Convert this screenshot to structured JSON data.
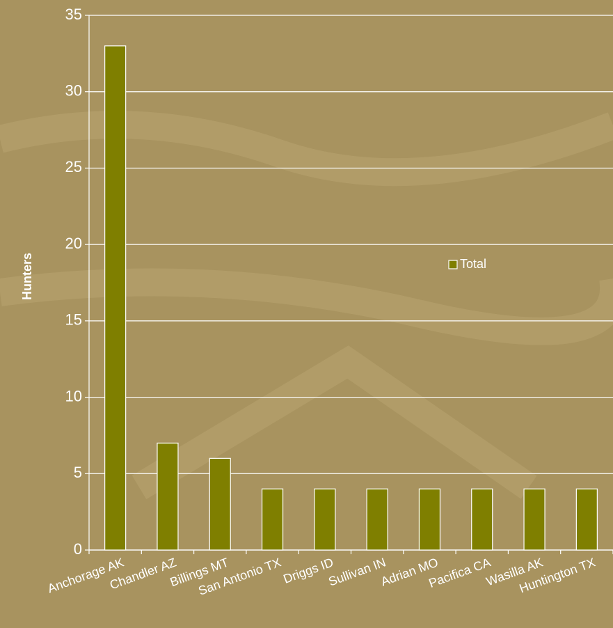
{
  "chart_data": {
    "type": "bar",
    "y_label": "Hunters",
    "categories": [
      "Anchorage AK",
      "Chandler AZ",
      "Billings MT",
      "San Antonio TX",
      "Driggs ID",
      "Sullivan IN",
      "Adrian MO",
      "Pacifica CA",
      "Wasilla AK",
      "Huntington TX"
    ],
    "series": [
      {
        "name": "Total",
        "color": "#7f7f00",
        "values": [
          33,
          7,
          6,
          4,
          4,
          4,
          4,
          4,
          4,
          4
        ]
      }
    ],
    "ylim": [
      0,
      35
    ],
    "yticks": [
      0,
      5,
      10,
      15,
      20,
      25,
      30,
      35
    ],
    "grid": true,
    "legend": "right"
  }
}
